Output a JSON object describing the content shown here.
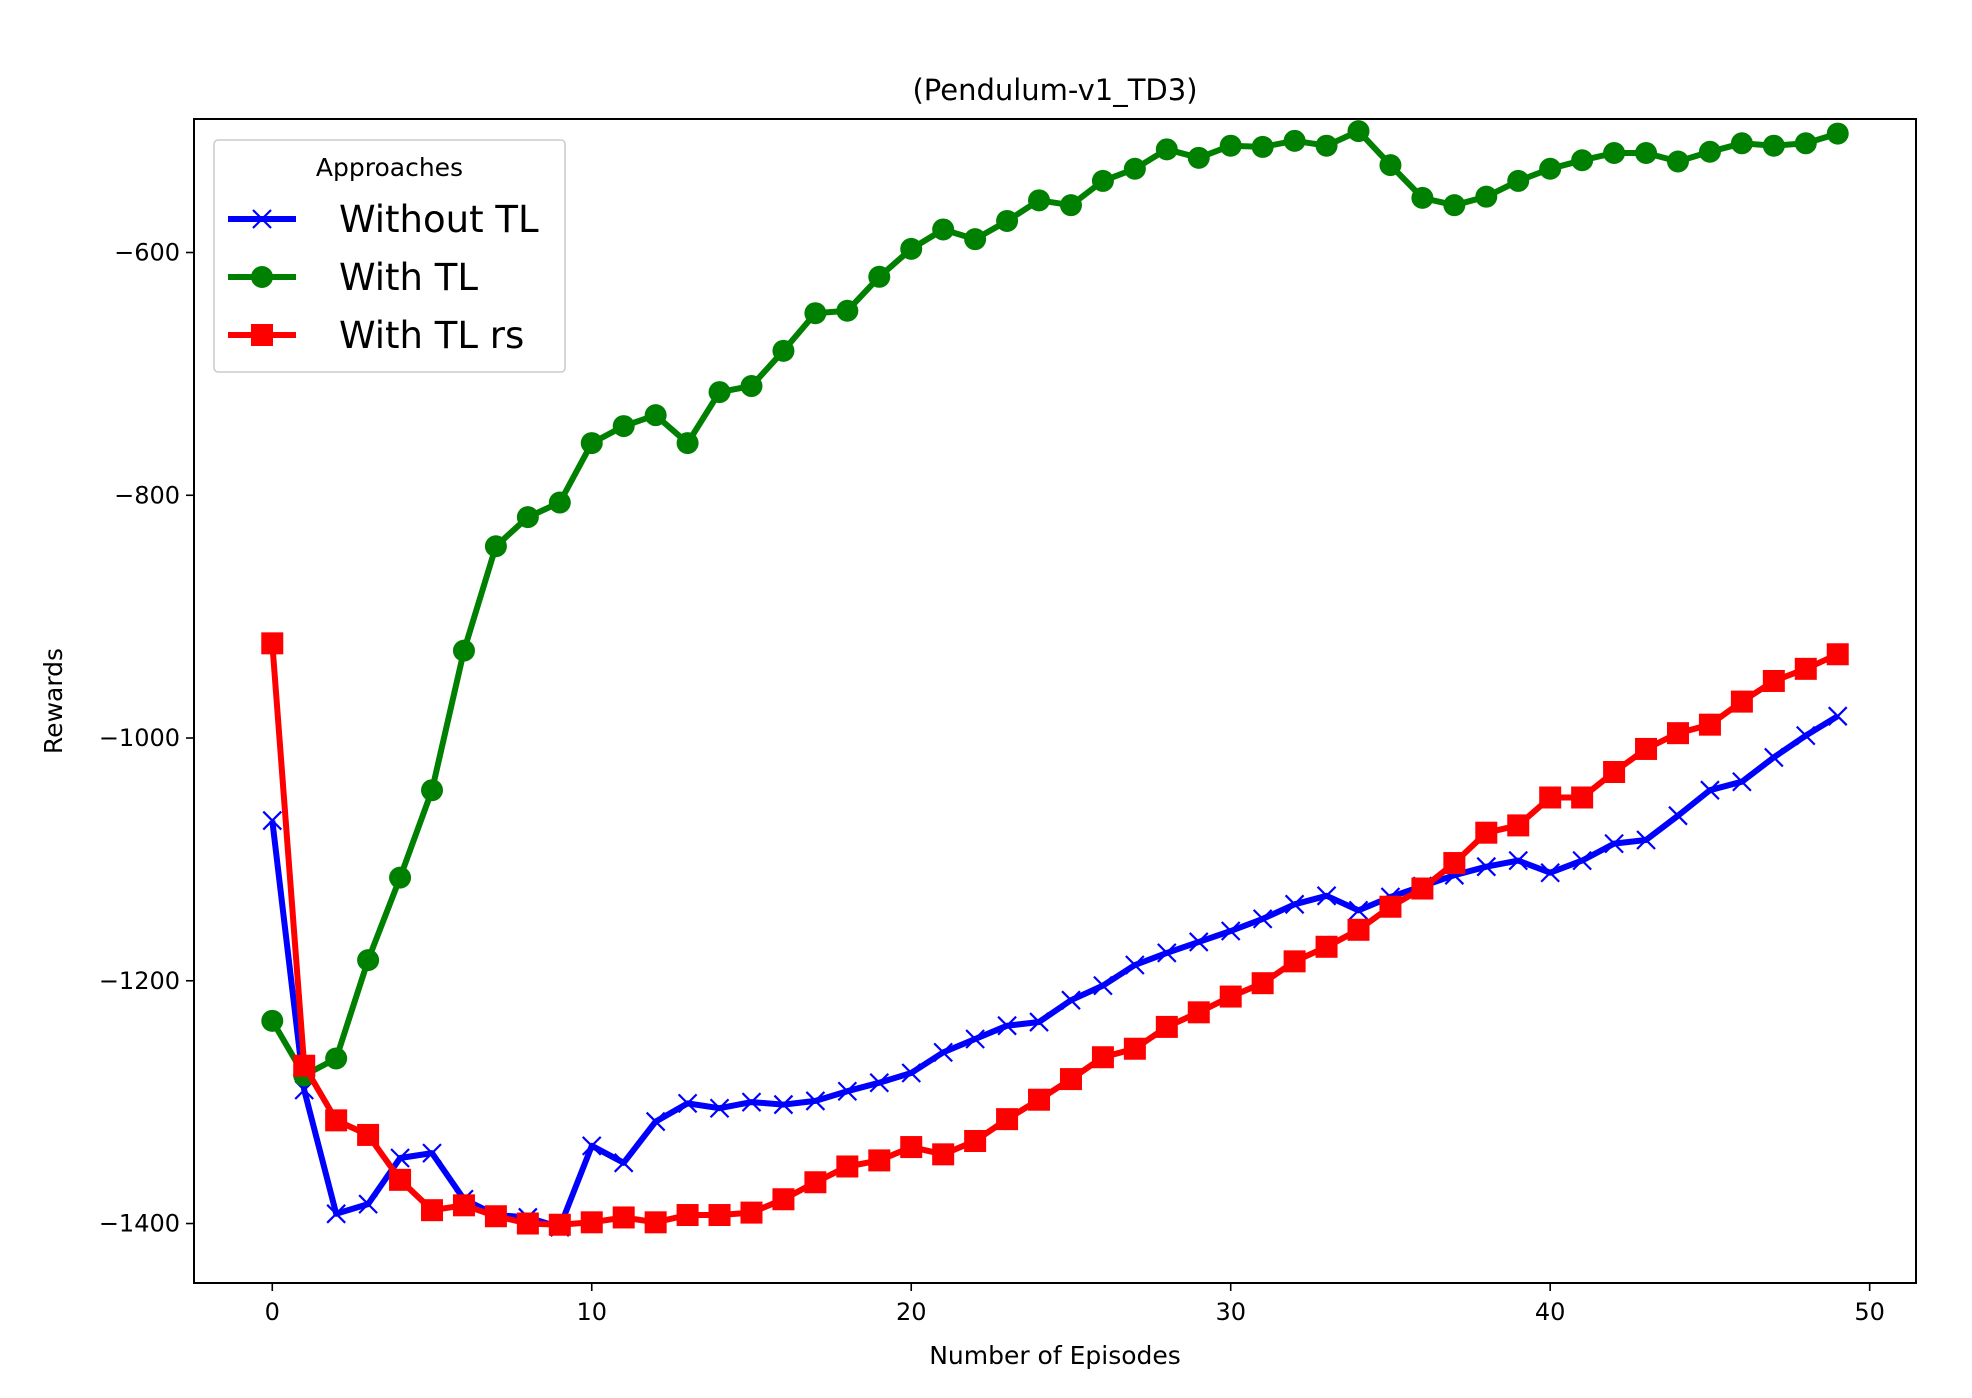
{
  "chart_data": {
    "type": "line",
    "title": "(Pendulum-v1_TD3)",
    "xlabel": "Number of Episodes",
    "ylabel": "Rewards",
    "xlim": [
      -2.45,
      51.45
    ],
    "ylim": [
      -1449,
      -490
    ],
    "xticks": [
      0,
      10,
      20,
      30,
      40,
      50
    ],
    "yticks": [
      -1400,
      -1200,
      -1000,
      -800,
      -600
    ],
    "ytick_labels": [
      "−1400",
      "−1200",
      "−1000",
      "−800",
      "−600"
    ],
    "grid": false,
    "legend": {
      "title": "Approaches",
      "position": "top-left"
    },
    "x": [
      0,
      1,
      2,
      3,
      4,
      5,
      6,
      7,
      8,
      9,
      10,
      11,
      12,
      13,
      14,
      15,
      16,
      17,
      18,
      19,
      20,
      21,
      22,
      23,
      24,
      25,
      26,
      27,
      28,
      29,
      30,
      31,
      32,
      33,
      34,
      35,
      36,
      37,
      38,
      39,
      40,
      41,
      42,
      43,
      44,
      45,
      46,
      47,
      48,
      49
    ],
    "series": [
      {
        "name": "Without TL",
        "color": "#0000ff",
        "marker": "x",
        "values": [
          -1068,
          -1290,
          -1392,
          -1384,
          -1346,
          -1342,
          -1380,
          -1393,
          -1395,
          -1403,
          -1336,
          -1350,
          -1316,
          -1301,
          -1305,
          -1300,
          -1302,
          -1299,
          -1291,
          -1284,
          -1276,
          -1259,
          -1248,
          -1237,
          -1234,
          -1216,
          -1204,
          -1187,
          -1177,
          -1168,
          -1159,
          -1149,
          -1137,
          -1130,
          -1142,
          -1131,
          -1122,
          -1113,
          -1106,
          -1101,
          -1111,
          -1101,
          -1087,
          -1084,
          -1064,
          -1043,
          -1036,
          -1016,
          -998,
          -982
        ]
      },
      {
        "name": "With TL",
        "color": "#008000",
        "marker": "o",
        "values": [
          -1233,
          -1278,
          -1264,
          -1183,
          -1115,
          -1043,
          -928,
          -842,
          -818,
          -806,
          -757,
          -743,
          -734,
          -757,
          -715,
          -710,
          -681,
          -650,
          -648,
          -620,
          -597,
          -581,
          -589,
          -574,
          -557,
          -561,
          -541,
          -531,
          -515,
          -522,
          -512,
          -513,
          -508,
          -512,
          -500,
          -528,
          -555,
          -561,
          -554,
          -541,
          -531,
          -524,
          -518,
          -518,
          -525,
          -517,
          -510,
          -512,
          -510,
          -502
        ]
      },
      {
        "name": "With TL rs",
        "color": "#ff0000",
        "marker": "s",
        "values": [
          -922,
          -1270,
          -1315,
          -1327,
          -1364,
          -1389,
          -1385,
          -1394,
          -1400,
          -1401,
          -1399,
          -1395,
          -1399,
          -1393,
          -1393,
          -1391,
          -1380,
          -1366,
          -1353,
          -1348,
          -1337,
          -1343,
          -1332,
          -1314,
          -1298,
          -1281,
          -1263,
          -1256,
          -1238,
          -1226,
          -1213,
          -1202,
          -1184,
          -1172,
          -1158,
          -1139,
          -1124,
          -1103,
          -1078,
          -1072,
          -1049,
          -1049,
          -1028,
          -1009,
          -996,
          -989,
          -970,
          -953,
          -943,
          -931
        ]
      }
    ]
  }
}
